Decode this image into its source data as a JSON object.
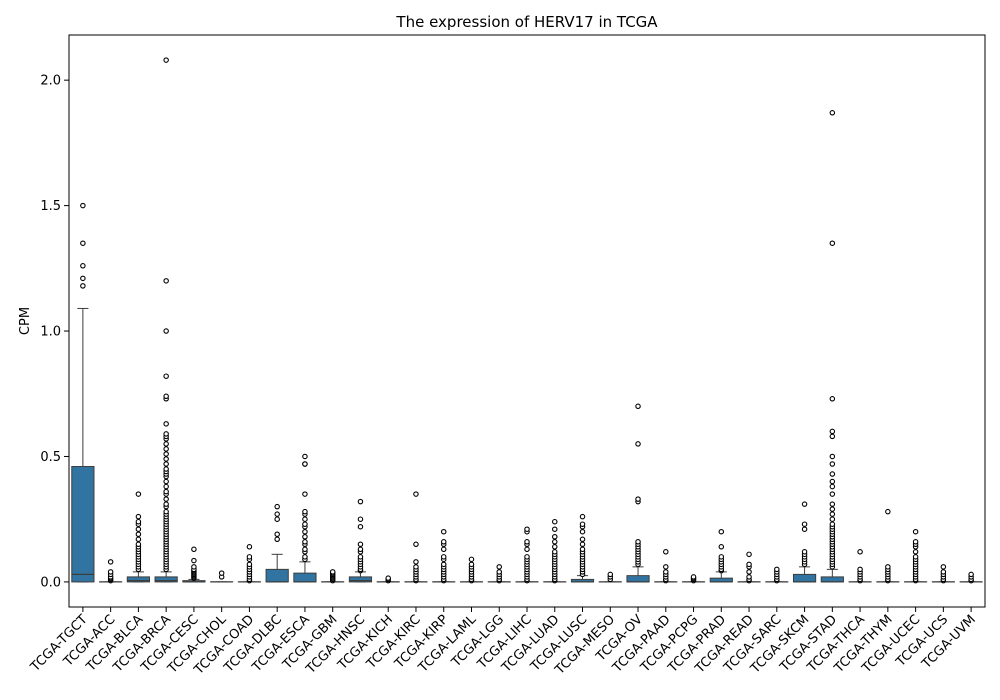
{
  "chart_data": {
    "type": "box",
    "title": "The expression of HERV17 in TCGA",
    "xlabel": "",
    "ylabel": "CPM",
    "ylim": [
      -0.1,
      2.18
    ],
    "yticks": [
      0.0,
      0.5,
      1.0,
      1.5,
      2.0
    ],
    "ytick_labels": [
      "0.0",
      "0.5",
      "1.0",
      "1.5",
      "2.0"
    ],
    "grid": false,
    "box_color": "#3274a1",
    "categories": [
      "TCGA-TGCT",
      "TCGA-ACC",
      "TCGA-BLCA",
      "TCGA-BRCA",
      "TCGA-CESC",
      "TCGA-CHOL",
      "TCGA-COAD",
      "TCGA-DLBC",
      "TCGA-ESCA",
      "TCGA-GBM",
      "TCGA-HNSC",
      "TCGA-KICH",
      "TCGA-KIRC",
      "TCGA-KIRP",
      "TCGA-LAML",
      "TCGA-LGG",
      "TCGA-LIHC",
      "TCGA-LUAD",
      "TCGA-LUSC",
      "TCGA-MESO",
      "TCGA-OV",
      "TCGA-PAAD",
      "TCGA-PCPG",
      "TCGA-PRAD",
      "TCGA-READ",
      "TCGA-SARC",
      "TCGA-SKCM",
      "TCGA-STAD",
      "TCGA-THCA",
      "TCGA-THYM",
      "TCGA-UCEC",
      "TCGA-UCS",
      "TCGA-UVM"
    ],
    "boxes": [
      {
        "q1": 0.0,
        "median": 0.03,
        "q3": 0.46,
        "whisker_low": 0.0,
        "whisker_high": 1.09,
        "outliers": [
          1.18,
          1.21,
          1.26,
          1.35,
          1.5
        ]
      },
      {
        "q1": 0.0,
        "median": 0.0,
        "q3": 0.0,
        "whisker_low": 0.0,
        "whisker_high": 0.0,
        "outliers": [
          0.005,
          0.01,
          0.015,
          0.02,
          0.03,
          0.04,
          0.08
        ]
      },
      {
        "q1": 0.0,
        "median": 0.005,
        "q3": 0.02,
        "whisker_low": 0.0,
        "whisker_high": 0.04,
        "outliers": [
          0.05,
          0.06,
          0.07,
          0.08,
          0.09,
          0.1,
          0.11,
          0.12,
          0.13,
          0.14,
          0.15,
          0.17,
          0.19,
          0.21,
          0.23,
          0.24,
          0.26,
          0.35
        ]
      },
      {
        "q1": 0.0,
        "median": 0.005,
        "q3": 0.02,
        "whisker_low": 0.0,
        "whisker_high": 0.04,
        "outliers": [
          0.05,
          0.06,
          0.07,
          0.08,
          0.09,
          0.1,
          0.11,
          0.12,
          0.13,
          0.14,
          0.15,
          0.16,
          0.17,
          0.18,
          0.19,
          0.2,
          0.21,
          0.22,
          0.23,
          0.24,
          0.25,
          0.26,
          0.27,
          0.28,
          0.3,
          0.31,
          0.33,
          0.35,
          0.36,
          0.38,
          0.4,
          0.42,
          0.43,
          0.44,
          0.45,
          0.47,
          0.49,
          0.51,
          0.53,
          0.55,
          0.57,
          0.58,
          0.59,
          0.63,
          0.73,
          0.74,
          0.82,
          1.0,
          1.2,
          2.08
        ]
      },
      {
        "q1": 0.0,
        "median": 0.0,
        "q3": 0.005,
        "whisker_low": 0.0,
        "whisker_high": 0.01,
        "outliers": [
          0.015,
          0.02,
          0.025,
          0.03,
          0.035,
          0.04,
          0.045,
          0.05,
          0.06,
          0.085,
          0.13
        ]
      },
      {
        "q1": 0.0,
        "median": 0.0,
        "q3": 0.0,
        "whisker_low": 0.0,
        "whisker_high": 0.0,
        "outliers": [
          0.02,
          0.035
        ]
      },
      {
        "q1": 0.0,
        "median": 0.0,
        "q3": 0.0,
        "whisker_low": 0.0,
        "whisker_high": 0.0,
        "outliers": [
          0.005,
          0.01,
          0.02,
          0.03,
          0.04,
          0.05,
          0.06,
          0.07,
          0.09,
          0.1,
          0.14
        ]
      },
      {
        "q1": 0.0,
        "median": 0.0,
        "q3": 0.05,
        "whisker_low": 0.0,
        "whisker_high": 0.11,
        "outliers": [
          0.17,
          0.19,
          0.25,
          0.27,
          0.3
        ]
      },
      {
        "q1": 0.0,
        "median": 0.0,
        "q3": 0.035,
        "whisker_low": 0.0,
        "whisker_high": 0.08,
        "outliers": [
          0.09,
          0.1,
          0.12,
          0.13,
          0.15,
          0.16,
          0.18,
          0.2,
          0.22,
          0.23,
          0.25,
          0.27,
          0.28,
          0.35,
          0.47,
          0.47,
          0.5
        ]
      },
      {
        "q1": 0.0,
        "median": 0.0,
        "q3": 0.0,
        "whisker_low": 0.0,
        "whisker_high": 0.0,
        "outliers": [
          0.005,
          0.01,
          0.015,
          0.02,
          0.025,
          0.03,
          0.035,
          0.04
        ]
      },
      {
        "q1": 0.0,
        "median": 0.005,
        "q3": 0.02,
        "whisker_low": 0.0,
        "whisker_high": 0.04,
        "outliers": [
          0.045,
          0.05,
          0.06,
          0.07,
          0.08,
          0.09,
          0.1,
          0.12,
          0.13,
          0.15,
          0.22,
          0.25,
          0.32
        ]
      },
      {
        "q1": 0.0,
        "median": 0.0,
        "q3": 0.0,
        "whisker_low": 0.0,
        "whisker_high": 0.0,
        "outliers": [
          0.005,
          0.01,
          0.015
        ]
      },
      {
        "q1": 0.0,
        "median": 0.0,
        "q3": 0.0,
        "whisker_low": 0.0,
        "whisker_high": 0.0,
        "outliers": [
          0.005,
          0.01,
          0.02,
          0.03,
          0.04,
          0.05,
          0.06,
          0.08,
          0.15,
          0.35
        ]
      },
      {
        "q1": 0.0,
        "median": 0.0,
        "q3": 0.0,
        "whisker_low": 0.0,
        "whisker_high": 0.0,
        "outliers": [
          0.005,
          0.01,
          0.02,
          0.03,
          0.04,
          0.05,
          0.06,
          0.07,
          0.09,
          0.1,
          0.13,
          0.15,
          0.16,
          0.2
        ]
      },
      {
        "q1": 0.0,
        "median": 0.0,
        "q3": 0.0,
        "whisker_low": 0.0,
        "whisker_high": 0.0,
        "outliers": [
          0.005,
          0.01,
          0.02,
          0.03,
          0.04,
          0.05,
          0.06,
          0.07,
          0.09
        ]
      },
      {
        "q1": 0.0,
        "median": 0.0,
        "q3": 0.0,
        "whisker_low": 0.0,
        "whisker_high": 0.0,
        "outliers": [
          0.005,
          0.01,
          0.02,
          0.03,
          0.04,
          0.06
        ]
      },
      {
        "q1": 0.0,
        "median": 0.0,
        "q3": 0.0,
        "whisker_low": 0.0,
        "whisker_high": 0.0,
        "outliers": [
          0.005,
          0.01,
          0.02,
          0.03,
          0.04,
          0.05,
          0.06,
          0.07,
          0.08,
          0.09,
          0.1,
          0.13,
          0.15,
          0.16,
          0.2,
          0.21
        ]
      },
      {
        "q1": 0.0,
        "median": 0.0,
        "q3": 0.0,
        "whisker_low": 0.0,
        "whisker_high": 0.0,
        "outliers": [
          0.005,
          0.01,
          0.02,
          0.03,
          0.04,
          0.05,
          0.06,
          0.07,
          0.08,
          0.09,
          0.1,
          0.11,
          0.12,
          0.14,
          0.16,
          0.18,
          0.21,
          0.24
        ]
      },
      {
        "q1": 0.0,
        "median": 0.0,
        "q3": 0.01,
        "whisker_low": 0.0,
        "whisker_high": 0.025,
        "outliers": [
          0.03,
          0.04,
          0.05,
          0.06,
          0.07,
          0.08,
          0.09,
          0.1,
          0.11,
          0.12,
          0.13,
          0.15,
          0.17,
          0.2,
          0.22,
          0.23,
          0.26
        ]
      },
      {
        "q1": 0.0,
        "median": 0.0,
        "q3": 0.0,
        "whisker_low": 0.0,
        "whisker_high": 0.0,
        "outliers": [
          0.01,
          0.02,
          0.03
        ]
      },
      {
        "q1": 0.0,
        "median": 0.0,
        "q3": 0.025,
        "whisker_low": 0.0,
        "whisker_high": 0.06,
        "outliers": [
          0.07,
          0.08,
          0.09,
          0.1,
          0.11,
          0.12,
          0.13,
          0.14,
          0.15,
          0.16,
          0.32,
          0.33,
          0.55,
          0.7
        ]
      },
      {
        "q1": 0.0,
        "median": 0.0,
        "q3": 0.0,
        "whisker_low": 0.0,
        "whisker_high": 0.0,
        "outliers": [
          0.005,
          0.01,
          0.02,
          0.03,
          0.04,
          0.06,
          0.12
        ]
      },
      {
        "q1": 0.0,
        "median": 0.0,
        "q3": 0.0,
        "whisker_low": 0.0,
        "whisker_high": 0.0,
        "outliers": [
          0.005,
          0.01,
          0.015,
          0.02
        ]
      },
      {
        "q1": 0.0,
        "median": 0.0,
        "q3": 0.015,
        "whisker_low": 0.0,
        "whisker_high": 0.04,
        "outliers": [
          0.045,
          0.05,
          0.06,
          0.07,
          0.08,
          0.09,
          0.1,
          0.14,
          0.2
        ]
      },
      {
        "q1": 0.0,
        "median": 0.0,
        "q3": 0.0,
        "whisker_low": 0.0,
        "whisker_high": 0.0,
        "outliers": [
          0.005,
          0.01,
          0.02,
          0.04,
          0.06,
          0.07,
          0.11
        ]
      },
      {
        "q1": 0.0,
        "median": 0.0,
        "q3": 0.0,
        "whisker_low": 0.0,
        "whisker_high": 0.0,
        "outliers": [
          0.005,
          0.01,
          0.02,
          0.03,
          0.04,
          0.05
        ]
      },
      {
        "q1": 0.0,
        "median": 0.0,
        "q3": 0.03,
        "whisker_low": 0.0,
        "whisker_high": 0.06,
        "outliers": [
          0.07,
          0.08,
          0.09,
          0.1,
          0.11,
          0.12,
          0.21,
          0.23,
          0.31
        ]
      },
      {
        "q1": 0.0,
        "median": 0.0,
        "q3": 0.02,
        "whisker_low": 0.0,
        "whisker_high": 0.05,
        "outliers": [
          0.06,
          0.07,
          0.08,
          0.09,
          0.1,
          0.11,
          0.12,
          0.13,
          0.14,
          0.15,
          0.16,
          0.17,
          0.18,
          0.19,
          0.2,
          0.21,
          0.22,
          0.23,
          0.25,
          0.27,
          0.29,
          0.31,
          0.35,
          0.38,
          0.4,
          0.43,
          0.47,
          0.5,
          0.58,
          0.6,
          0.73,
          1.35,
          1.87
        ]
      },
      {
        "q1": 0.0,
        "median": 0.0,
        "q3": 0.0,
        "whisker_low": 0.0,
        "whisker_high": 0.0,
        "outliers": [
          0.005,
          0.01,
          0.02,
          0.03,
          0.04,
          0.05,
          0.12
        ]
      },
      {
        "q1": 0.0,
        "median": 0.0,
        "q3": 0.0,
        "whisker_low": 0.0,
        "whisker_high": 0.0,
        "outliers": [
          0.005,
          0.01,
          0.02,
          0.03,
          0.04,
          0.05,
          0.06,
          0.28
        ]
      },
      {
        "q1": 0.0,
        "median": 0.0,
        "q3": 0.0,
        "whisker_low": 0.0,
        "whisker_high": 0.0,
        "outliers": [
          0.005,
          0.01,
          0.02,
          0.03,
          0.04,
          0.05,
          0.06,
          0.07,
          0.08,
          0.09,
          0.1,
          0.12,
          0.14,
          0.15,
          0.16,
          0.2
        ]
      },
      {
        "q1": 0.0,
        "median": 0.0,
        "q3": 0.0,
        "whisker_low": 0.0,
        "whisker_high": 0.0,
        "outliers": [
          0.005,
          0.01,
          0.02,
          0.03,
          0.04,
          0.06
        ]
      },
      {
        "q1": 0.0,
        "median": 0.0,
        "q3": 0.0,
        "whisker_low": 0.0,
        "whisker_high": 0.0,
        "outliers": [
          0.005,
          0.01,
          0.02,
          0.03
        ]
      }
    ]
  }
}
